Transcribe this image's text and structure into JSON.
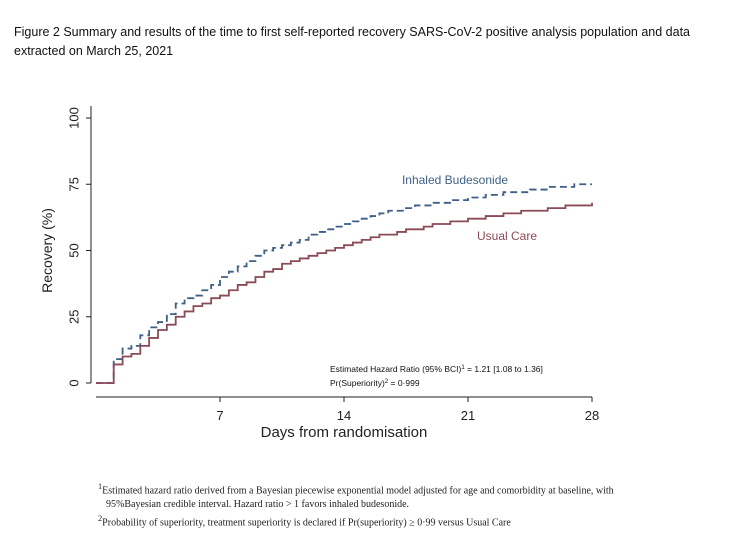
{
  "caption": "Figure 2 Summary and results of the time to first self-reported recovery SARS-CoV-2 positive analysis population and data extracted on March 25, 2021",
  "chart_data": {
    "type": "line",
    "step": true,
    "xlabel": "Days from randomisation",
    "ylabel": "Recovery (%)",
    "xlim": [
      0,
      28
    ],
    "ylim": [
      0,
      100
    ],
    "x_ticks": [
      7,
      14,
      21,
      28
    ],
    "y_ticks": [
      0,
      25,
      50,
      75,
      100
    ],
    "series": [
      {
        "name": "Inhaled Budesonide",
        "color": "#3f5f86",
        "dash": true,
        "x": [
          0,
          1,
          1.5,
          2,
          2.5,
          3,
          3.5,
          4,
          4.5,
          5,
          5.5,
          6,
          6.5,
          7,
          7.5,
          8,
          8.5,
          9,
          9.5,
          10,
          10.5,
          11,
          11.5,
          12,
          12.5,
          13,
          13.5,
          14,
          14.5,
          15,
          15.5,
          16,
          16.5,
          17,
          17.5,
          18,
          18.5,
          19,
          19.5,
          20,
          20.5,
          21,
          21.5,
          22,
          22.5,
          23,
          23.5,
          24,
          24.5,
          25,
          25.5,
          26,
          26.5,
          27,
          27.5,
          28
        ],
        "y": [
          0,
          9,
          13,
          14,
          18,
          21,
          23,
          26,
          30,
          32,
          33,
          35,
          37,
          40,
          42,
          44,
          46,
          48,
          50,
          51,
          52,
          53,
          54,
          56,
          57,
          58,
          59,
          60,
          61,
          62,
          63,
          64,
          65,
          65,
          66,
          67,
          67,
          68,
          68,
          69,
          69,
          70,
          70,
          71,
          71,
          72,
          72,
          72,
          73,
          73,
          74,
          74,
          74,
          75,
          75,
          75
        ]
      },
      {
        "name": "Usual Care",
        "color": "#8b4a57",
        "dash": false,
        "x": [
          0,
          1,
          1.5,
          2,
          2.5,
          3,
          3.5,
          4,
          4.5,
          5,
          5.5,
          6,
          6.5,
          7,
          7.5,
          8,
          8.5,
          9,
          9.5,
          10,
          10.5,
          11,
          11.5,
          12,
          12.5,
          13,
          13.5,
          14,
          14.5,
          15,
          15.5,
          16,
          16.5,
          17,
          17.5,
          18,
          18.5,
          19,
          19.5,
          20,
          20.5,
          21,
          21.5,
          22,
          22.5,
          23,
          23.5,
          24,
          24.5,
          25,
          25.5,
          26,
          26.5,
          27,
          27.5,
          28
        ],
        "y": [
          0,
          7,
          10,
          11,
          14,
          17,
          20,
          22,
          25,
          27,
          29,
          30,
          32,
          33,
          35,
          37,
          38,
          40,
          42,
          43,
          45,
          46,
          47,
          48,
          49,
          50,
          51,
          52,
          53,
          54,
          55,
          56,
          56,
          57,
          58,
          58,
          59,
          60,
          60,
          61,
          61,
          62,
          62,
          63,
          63,
          64,
          64,
          65,
          65,
          65,
          66,
          66,
          67,
          67,
          67,
          68
        ]
      }
    ],
    "annotation": {
      "hr_label": "Estimated Hazard Ratio (95% BCI)",
      "hr_sup": "1",
      "hr_value": "= 1.21 [1.08 to 1.36]",
      "sup_label": "Pr(Superiority)",
      "sup_sup": "2",
      "sup_value": "= 0·999"
    }
  },
  "footnotes": {
    "note1_sup": "1",
    "note1_line1": "Estimated hazard ratio derived from a Bayesian piecewise exponential model adjusted for age and comorbidity at baseline, with",
    "note1_line2": "95%Bayesian credible interval. Hazard ratio > 1 favors inhaled budesonide.",
    "note2_sup": "2",
    "note2_line": "Probability of superiority, treatment superiority is declared if Pr(superiority) ≥ 0·99 versus Usual Care"
  }
}
